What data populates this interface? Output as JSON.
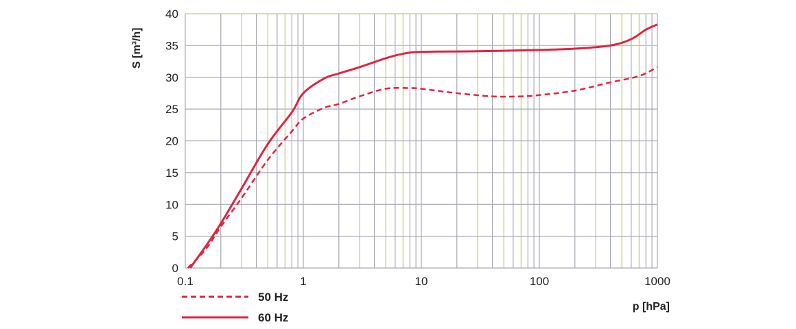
{
  "chart_data": {
    "type": "line",
    "xlabel": "p [hPa]",
    "ylabel": "S [m³/h]",
    "xscale": "log",
    "xlim": [
      0.1,
      1000
    ],
    "ylim": [
      0,
      40
    ],
    "grid": true,
    "legend_placement": "bottom-left",
    "x_ticks": [
      "0.1",
      "1",
      "10",
      "100",
      "1000"
    ],
    "y_ticks": [
      "0",
      "5",
      "10",
      "15",
      "20",
      "25",
      "30",
      "35",
      "40"
    ],
    "colors": {
      "series": "#e0243f",
      "grid_gray": "#a8a8b4",
      "grid_olive": "#c8c86e"
    },
    "series": [
      {
        "name": "50 Hz",
        "style": "dashed",
        "x": [
          0.105,
          0.15,
          0.2,
          0.3,
          0.5,
          0.8,
          1,
          1.5,
          2,
          3,
          5,
          8,
          10,
          20,
          40,
          70,
          100,
          200,
          400,
          700,
          1000
        ],
        "y": [
          0,
          3,
          6.5,
          11,
          17,
          21.5,
          23.5,
          25.2,
          25.8,
          27,
          28.2,
          28.3,
          28.2,
          27.5,
          27,
          27,
          27.2,
          27.9,
          29.2,
          30.2,
          31.6
        ]
      },
      {
        "name": "60 Hz",
        "style": "solid",
        "x": [
          0.11,
          0.15,
          0.2,
          0.3,
          0.5,
          0.8,
          1,
          1.5,
          2,
          3,
          5,
          7,
          10,
          30,
          100,
          200,
          400,
          600,
          800,
          1000
        ],
        "y": [
          0,
          3.5,
          7,
          12.5,
          19.5,
          24.5,
          27.5,
          29.8,
          30.6,
          31.6,
          33,
          33.7,
          34,
          34.1,
          34.3,
          34.5,
          35,
          36,
          37.5,
          38.3
        ]
      }
    ]
  }
}
